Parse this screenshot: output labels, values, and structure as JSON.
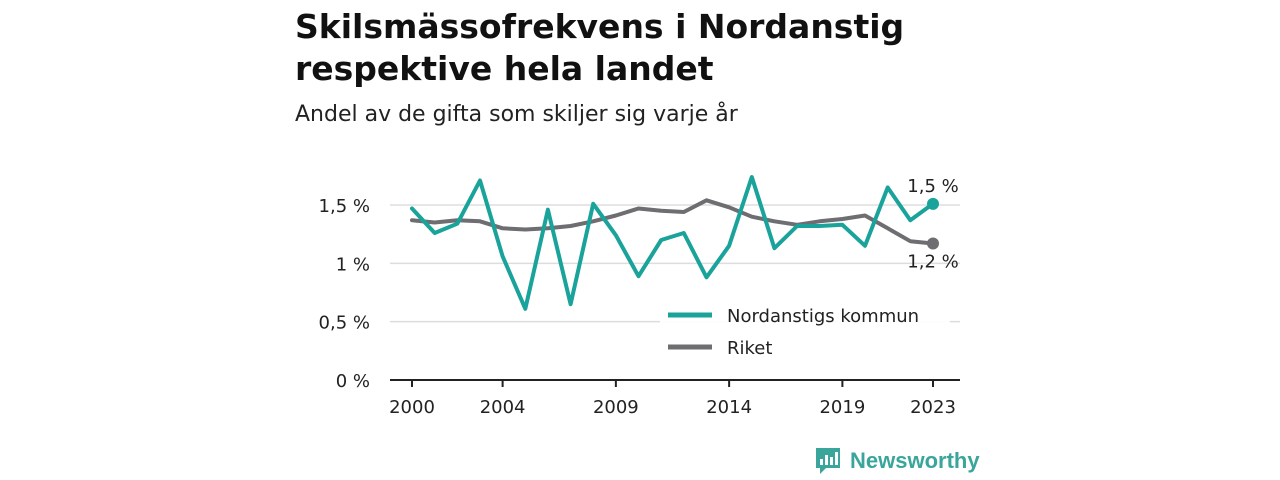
{
  "title_lines": [
    "Skilsmässofrekvens i Nordanstig",
    "respektive hela landet"
  ],
  "subtitle": "Andel av de gifta som skiljer sig varje år",
  "brand": "Newsworthy",
  "colors": {
    "nordanstig": "#1aa39a",
    "riket": "#6d6d72",
    "grid": "#dddddd",
    "axis": "#222222",
    "brand": "#3aa59b"
  },
  "chart_data": {
    "type": "line",
    "title": "Skilsmässofrekvens i Nordanstig respektive hela landet",
    "subtitle": "Andel av de gifta som skiljer sig varje år",
    "xlabel": "",
    "ylabel": "",
    "x": [
      2000,
      2001,
      2002,
      2003,
      2004,
      2005,
      2006,
      2007,
      2008,
      2009,
      2010,
      2011,
      2012,
      2013,
      2014,
      2015,
      2016,
      2017,
      2018,
      2019,
      2020,
      2021,
      2022,
      2023
    ],
    "x_ticks": [
      2000,
      2004,
      2009,
      2014,
      2019,
      2023
    ],
    "x_tick_labels": [
      "2000",
      "2004",
      "2009",
      "2014",
      "2019",
      "2023"
    ],
    "xlim": [
      2000,
      2023
    ],
    "ylim": [
      0,
      1.5
    ],
    "y_ticks": [
      0,
      0.5,
      1,
      1.5
    ],
    "y_tick_labels": [
      "0 %",
      "0,5 %",
      "1 %",
      "1,5 %"
    ],
    "grid": "horizontal",
    "legend_position": "bottom-right",
    "series": [
      {
        "name": "Nordanstigs kommun",
        "color": "#1aa39a",
        "values": [
          1.47,
          1.26,
          1.34,
          1.71,
          1.06,
          0.61,
          1.46,
          0.65,
          1.51,
          1.24,
          0.89,
          1.2,
          1.26,
          0.88,
          1.15,
          1.74,
          1.13,
          1.32,
          1.32,
          1.33,
          1.15,
          1.65,
          1.37,
          1.51
        ],
        "end_label": "1,5 %"
      },
      {
        "name": "Riket",
        "color": "#6d6d72",
        "values": [
          1.37,
          1.35,
          1.37,
          1.36,
          1.3,
          1.29,
          1.3,
          1.32,
          1.36,
          1.41,
          1.47,
          1.45,
          1.44,
          1.54,
          1.48,
          1.4,
          1.36,
          1.33,
          1.36,
          1.38,
          1.41,
          1.3,
          1.19,
          1.17
        ],
        "end_label": "1,2 %"
      }
    ]
  }
}
